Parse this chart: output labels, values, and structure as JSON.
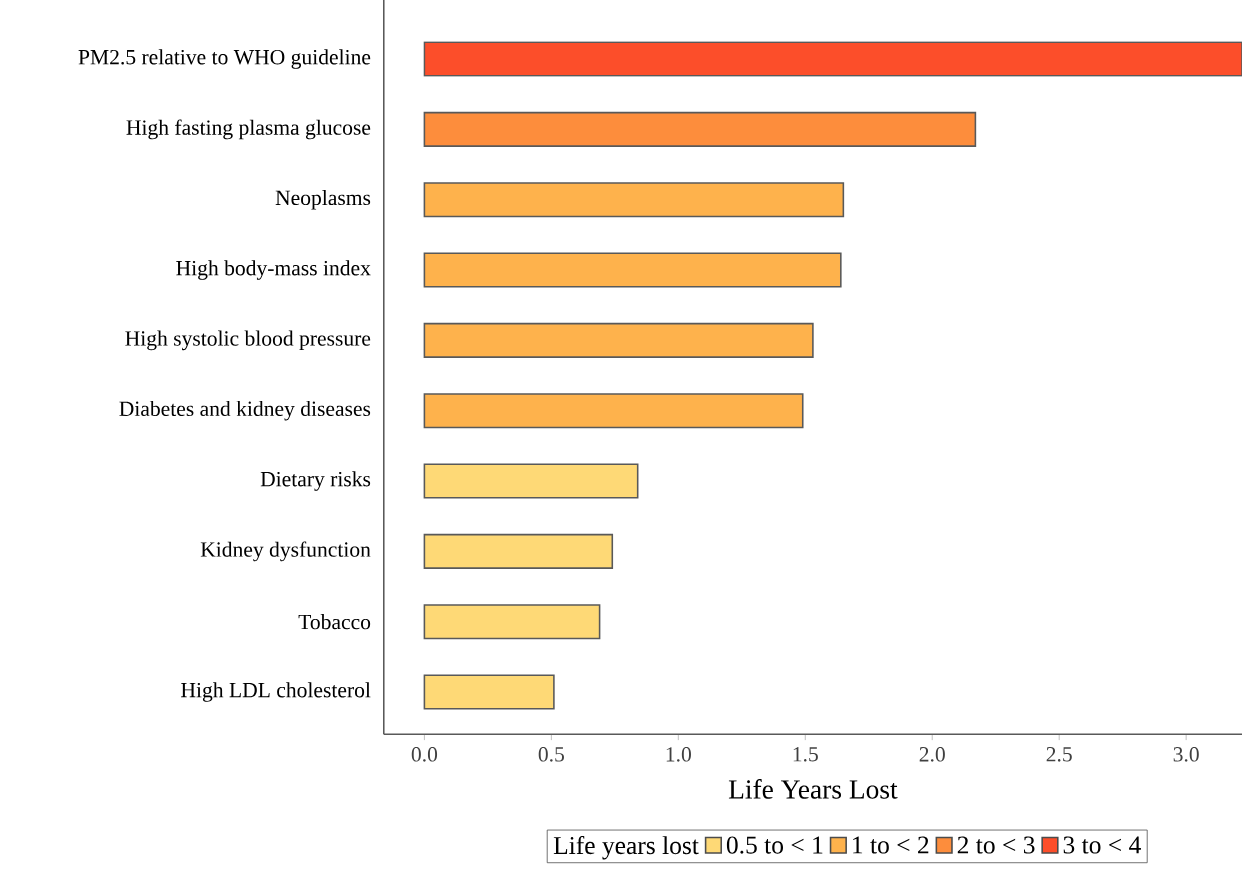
{
  "chart_data": {
    "type": "bar",
    "orientation": "horizontal",
    "categories": [
      "PM2.5 relative to WHO guideline",
      "High fasting plasma glucose",
      "Neoplasms",
      "High body-mass index",
      "High systolic blood pressure",
      "Diabetes and kidney diseases",
      "Dietary risks",
      "Kidney dysfunction",
      "Tobacco",
      "High LDL cholesterol"
    ],
    "series": [
      {
        "name": "0.5 to < 1",
        "color": "#fed976",
        "values": [
          null,
          null,
          null,
          null,
          null,
          null,
          0.84,
          0.74,
          0.69,
          0.51
        ]
      },
      {
        "name": "1 to < 2",
        "color": "#feb24c",
        "values": [
          null,
          null,
          1.65,
          1.64,
          1.53,
          1.49,
          null,
          null,
          null,
          null
        ]
      },
      {
        "name": "2 to < 3",
        "color": "#fd8d3c",
        "values": [
          null,
          2.17,
          null,
          null,
          null,
          null,
          null,
          null,
          null,
          null
        ]
      },
      {
        "name": "3 to < 4",
        "color": "#fc4e2a",
        "values": [
          3.22,
          null,
          null,
          null,
          null,
          null,
          null,
          null,
          null,
          null
        ]
      }
    ],
    "xlabel": "Life Years Lost",
    "legend_title": "Life years lost",
    "legend": "bottom",
    "xlim": [
      -0.16,
      3.22
    ],
    "xticks": [
      {
        "value": 0,
        "label": "0.0"
      },
      {
        "value": 0.5,
        "label": "0.5"
      },
      {
        "value": 1,
        "label": "1.0"
      },
      {
        "value": 1.5,
        "label": "1.5"
      },
      {
        "value": 2,
        "label": "2.0"
      },
      {
        "value": 2.5,
        "label": "2.5"
      },
      {
        "value": 3,
        "label": "3.0"
      }
    ]
  }
}
